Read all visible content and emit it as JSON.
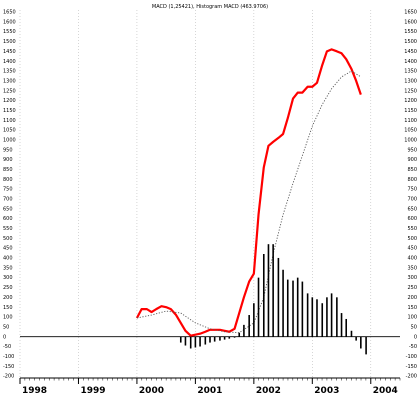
{
  "chart_data": {
    "type": "line",
    "title": "MACD (1,25421), Histogram MACD (463.9706)",
    "xlabel": "",
    "ylabel": "",
    "xlim": [
      1998.0,
      2004.5
    ],
    "ylim": [
      -210,
      1660
    ],
    "grid": {
      "vertical": true,
      "horizontal": false
    },
    "legend": "none",
    "y_ticks": [
      -200,
      -150,
      -100,
      -50,
      0,
      50,
      100,
      150,
      200,
      250,
      300,
      350,
      400,
      450,
      500,
      550,
      600,
      650,
      700,
      750,
      800,
      850,
      900,
      950,
      1000,
      1050,
      1100,
      1150,
      1200,
      1250,
      1300,
      1350,
      1400,
      1450,
      1500,
      1550,
      1600,
      1650
    ],
    "x_ticks": [
      {
        "label": "1998",
        "x": 1998
      },
      {
        "label": "1999",
        "x": 1999
      },
      {
        "label": "2000",
        "x": 2000
      },
      {
        "label": "2001",
        "x": 2001
      },
      {
        "label": "2002",
        "x": 2002
      },
      {
        "label": "2003",
        "x": 2003
      },
      {
        "label": "2004",
        "x": 2004
      }
    ],
    "series": [
      {
        "style": "thick-line",
        "color": "#ff0000",
        "x": [
          2000.0,
          2000.08,
          2000.17,
          2000.25,
          2000.33,
          2000.42,
          2000.5,
          2000.58,
          2000.67,
          2000.75,
          2000.83,
          2000.92,
          2001.0,
          2001.08,
          2001.17,
          2001.25,
          2001.33,
          2001.42,
          2001.5,
          2001.58,
          2001.67,
          2001.75,
          2001.83,
          2001.92,
          2002.0,
          2002.08,
          2002.17,
          2002.25,
          2002.33,
          2002.42,
          2002.5,
          2002.58,
          2002.67,
          2002.75,
          2002.83,
          2002.92,
          2003.0,
          2003.08,
          2003.17,
          2003.25,
          2003.33,
          2003.42,
          2003.5,
          2003.58,
          2003.67,
          2003.75,
          2003.83
        ],
        "values": [
          95,
          140,
          140,
          125,
          140,
          155,
          150,
          140,
          110,
          70,
          30,
          5,
          10,
          15,
          25,
          35,
          35,
          35,
          30,
          25,
          40,
          120,
          200,
          280,
          320,
          620,
          860,
          970,
          990,
          1010,
          1030,
          1110,
          1210,
          1240,
          1240,
          1270,
          1270,
          1290,
          1380,
          1450,
          1460,
          1450,
          1440,
          1410,
          1360,
          1300,
          1230
        ]
      },
      {
        "style": "dotted-line",
        "color": "#555555",
        "x": [
          2000.0,
          2000.25,
          2000.5,
          2000.75,
          2001.0,
          2001.25,
          2001.5,
          2001.75,
          2002.0,
          2002.17,
          2002.33,
          2002.5,
          2002.67,
          2002.83,
          2003.0,
          2003.17,
          2003.33,
          2003.5,
          2003.67,
          2003.83
        ],
        "values": [
          95,
          110,
          130,
          120,
          70,
          40,
          25,
          20,
          70,
          200,
          420,
          620,
          780,
          920,
          1070,
          1180,
          1260,
          1320,
          1350,
          1320
        ]
      },
      {
        "style": "histogram",
        "color": "#000000",
        "x": [
          2000.75,
          2000.83,
          2000.92,
          2001.0,
          2001.08,
          2001.17,
          2001.25,
          2001.33,
          2001.42,
          2001.5,
          2001.58,
          2001.67,
          2001.75,
          2001.83,
          2001.92,
          2002.0,
          2002.08,
          2002.17,
          2002.25,
          2002.33,
          2002.42,
          2002.5,
          2002.58,
          2002.67,
          2002.75,
          2002.83,
          2002.92,
          2003.0,
          2003.08,
          2003.17,
          2003.25,
          2003.33,
          2003.42,
          2003.5,
          2003.58,
          2003.67,
          2003.75,
          2003.83,
          2003.92
        ],
        "values": [
          -30,
          -45,
          -60,
          -55,
          -50,
          -40,
          -30,
          -25,
          -20,
          -15,
          -10,
          -5,
          20,
          60,
          110,
          170,
          300,
          420,
          470,
          470,
          400,
          340,
          290,
          285,
          300,
          280,
          220,
          200,
          190,
          170,
          200,
          220,
          200,
          120,
          90,
          30,
          -20,
          -60,
          -90
        ]
      }
    ]
  }
}
